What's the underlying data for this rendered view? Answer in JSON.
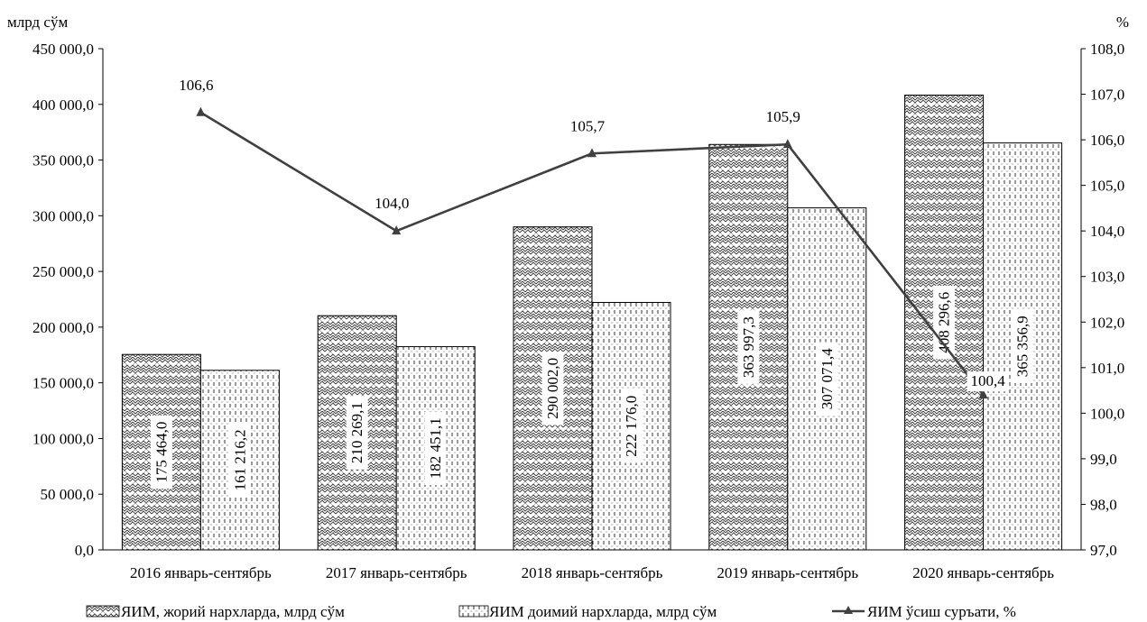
{
  "chart_data": {
    "type": "bar",
    "title": "",
    "categories": [
      "2016 январь-сентябрь",
      "2017 январь-сентябрь",
      "2018 январь-сентябрь",
      "2019 январь-сентябрь",
      "2020 январь-сентябрь"
    ],
    "y_left": {
      "unit": "млрд сўм",
      "ylim": [
        0,
        450000
      ],
      "ticks": [
        "0,0",
        "50 000,0",
        "100 000,0",
        "150 000,0",
        "200 000,0",
        "250 000,0",
        "300 000,0",
        "350 000,0",
        "400 000,0",
        "450 000,0"
      ]
    },
    "y_right": {
      "unit": "%",
      "ylim": [
        97,
        108
      ],
      "ticks": [
        "97,0",
        "98,0",
        "99,0",
        "100,0",
        "101,0",
        "102,0",
        "103,0",
        "104,0",
        "105,0",
        "106,0",
        "107,0",
        "108,0"
      ]
    },
    "series": [
      {
        "name": "ЯИМ, жорий нархларда, млрд сўм",
        "type": "bar",
        "axis": "left",
        "pattern": "crosshatch",
        "values": [
          175464.0,
          210269.1,
          290002.0,
          363997.3,
          408296.6
        ],
        "labels": [
          "175 464,0",
          "210 269,1",
          "290 002,0",
          "363 997,3",
          "408 296,6"
        ]
      },
      {
        "name": "ЯИМ доимий нархларда, млрд сўм",
        "type": "bar",
        "axis": "left",
        "pattern": "vertical-dash",
        "values": [
          161216.2,
          182451.1,
          222176.0,
          307071.4,
          365356.9
        ],
        "labels": [
          "161 216,2",
          "182 451,1",
          "222 176,0",
          "307 071,4",
          "365 356,9"
        ]
      },
      {
        "name": "ЯИМ ўсиш суръати, %",
        "type": "line",
        "axis": "right",
        "marker": "triangle",
        "color": "#404040",
        "values": [
          106.6,
          104.0,
          105.7,
          105.9,
          100.4
        ],
        "labels": [
          "106,6",
          "104,0",
          "105,7",
          "105,9",
          "100,4"
        ]
      }
    ],
    "legend_position": "bottom",
    "grid": false
  }
}
